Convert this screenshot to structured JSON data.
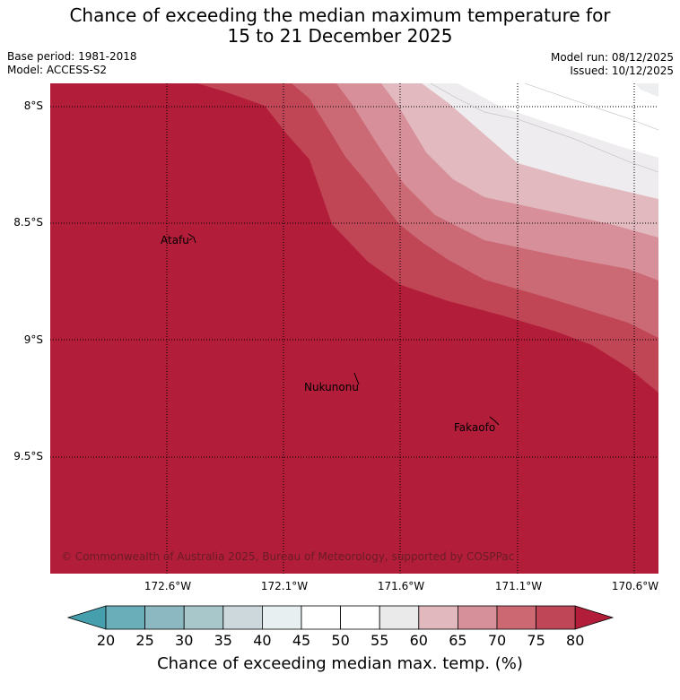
{
  "title": {
    "line1": "Chance of exceeding the median maximum temperature for",
    "line2": "15 to 21 December 2025"
  },
  "meta": {
    "base_period": "Base period: 1981-2018",
    "model": "Model: ACCESS-S2",
    "model_run": "Model run: 08/12/2025",
    "issued": "Issued: 10/12/2025"
  },
  "map": {
    "lat_labels": [
      "8°S",
      "8.5°S",
      "9°S",
      "9.5°S"
    ],
    "lon_labels": [
      "172.6°W",
      "172.1°W",
      "171.6°W",
      "171.1°W",
      "170.6°W"
    ],
    "places": [
      "Atafu",
      "Nukunonu",
      "Fakaofo"
    ],
    "copyright": "© Commonwealth of Australia 2025, Bureau of Meteorology, supported by COSPPac",
    "colors": {
      "c40_45": "#edeef0",
      "c55_60": "#eeecee",
      "c60_65": "#e1b9bf",
      "c65_70": "#d78f99",
      "c70_75": "#cb6a75",
      "c75_80": "#c04555",
      "c80plus": "#b21e39"
    }
  },
  "colorbar": {
    "ticks": [
      "20",
      "25",
      "30",
      "35",
      "40",
      "45",
      "50",
      "55",
      "60",
      "65",
      "70",
      "75",
      "80"
    ],
    "colors": [
      "#459fac",
      "#6aaeba",
      "#8bb8c1",
      "#a8c7cb",
      "#ccd8dc",
      "#e8eff1",
      "#ffffff",
      "#ffffff",
      "#ebeaeb",
      "#e1b8bd",
      "#d6909a",
      "#cb6872",
      "#bf4656",
      "#b21e39"
    ],
    "label": "Chance of exceeding median max. temp. (%)"
  }
}
